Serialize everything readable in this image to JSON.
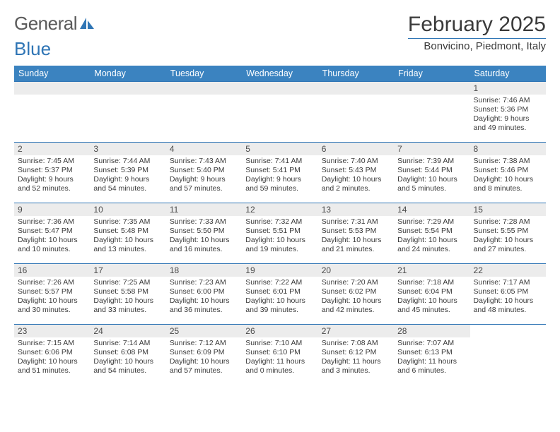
{
  "logo": {
    "part1": "General",
    "part2": "Blue"
  },
  "title": "February 2025",
  "location": "Bonvicino, Piedmont, Italy",
  "day_headers": [
    "Sunday",
    "Monday",
    "Tuesday",
    "Wednesday",
    "Thursday",
    "Friday",
    "Saturday"
  ],
  "colors": {
    "accent": "#3b83c0",
    "rule": "#2f75b5",
    "daynum_bg": "#ececec",
    "text": "#3a3a3a"
  },
  "weeks": [
    [
      null,
      null,
      null,
      null,
      null,
      null,
      {
        "n": "1",
        "sr": "7:46 AM",
        "ss": "5:36 PM",
        "dl": "9 hours and 49 minutes."
      }
    ],
    [
      {
        "n": "2",
        "sr": "7:45 AM",
        "ss": "5:37 PM",
        "dl": "9 hours and 52 minutes."
      },
      {
        "n": "3",
        "sr": "7:44 AM",
        "ss": "5:39 PM",
        "dl": "9 hours and 54 minutes."
      },
      {
        "n": "4",
        "sr": "7:43 AM",
        "ss": "5:40 PM",
        "dl": "9 hours and 57 minutes."
      },
      {
        "n": "5",
        "sr": "7:41 AM",
        "ss": "5:41 PM",
        "dl": "9 hours and 59 minutes."
      },
      {
        "n": "6",
        "sr": "7:40 AM",
        "ss": "5:43 PM",
        "dl": "10 hours and 2 minutes."
      },
      {
        "n": "7",
        "sr": "7:39 AM",
        "ss": "5:44 PM",
        "dl": "10 hours and 5 minutes."
      },
      {
        "n": "8",
        "sr": "7:38 AM",
        "ss": "5:46 PM",
        "dl": "10 hours and 8 minutes."
      }
    ],
    [
      {
        "n": "9",
        "sr": "7:36 AM",
        "ss": "5:47 PM",
        "dl": "10 hours and 10 minutes."
      },
      {
        "n": "10",
        "sr": "7:35 AM",
        "ss": "5:48 PM",
        "dl": "10 hours and 13 minutes."
      },
      {
        "n": "11",
        "sr": "7:33 AM",
        "ss": "5:50 PM",
        "dl": "10 hours and 16 minutes."
      },
      {
        "n": "12",
        "sr": "7:32 AM",
        "ss": "5:51 PM",
        "dl": "10 hours and 19 minutes."
      },
      {
        "n": "13",
        "sr": "7:31 AM",
        "ss": "5:53 PM",
        "dl": "10 hours and 21 minutes."
      },
      {
        "n": "14",
        "sr": "7:29 AM",
        "ss": "5:54 PM",
        "dl": "10 hours and 24 minutes."
      },
      {
        "n": "15",
        "sr": "7:28 AM",
        "ss": "5:55 PM",
        "dl": "10 hours and 27 minutes."
      }
    ],
    [
      {
        "n": "16",
        "sr": "7:26 AM",
        "ss": "5:57 PM",
        "dl": "10 hours and 30 minutes."
      },
      {
        "n": "17",
        "sr": "7:25 AM",
        "ss": "5:58 PM",
        "dl": "10 hours and 33 minutes."
      },
      {
        "n": "18",
        "sr": "7:23 AM",
        "ss": "6:00 PM",
        "dl": "10 hours and 36 minutes."
      },
      {
        "n": "19",
        "sr": "7:22 AM",
        "ss": "6:01 PM",
        "dl": "10 hours and 39 minutes."
      },
      {
        "n": "20",
        "sr": "7:20 AM",
        "ss": "6:02 PM",
        "dl": "10 hours and 42 minutes."
      },
      {
        "n": "21",
        "sr": "7:18 AM",
        "ss": "6:04 PM",
        "dl": "10 hours and 45 minutes."
      },
      {
        "n": "22",
        "sr": "7:17 AM",
        "ss": "6:05 PM",
        "dl": "10 hours and 48 minutes."
      }
    ],
    [
      {
        "n": "23",
        "sr": "7:15 AM",
        "ss": "6:06 PM",
        "dl": "10 hours and 51 minutes."
      },
      {
        "n": "24",
        "sr": "7:14 AM",
        "ss": "6:08 PM",
        "dl": "10 hours and 54 minutes."
      },
      {
        "n": "25",
        "sr": "7:12 AM",
        "ss": "6:09 PM",
        "dl": "10 hours and 57 minutes."
      },
      {
        "n": "26",
        "sr": "7:10 AM",
        "ss": "6:10 PM",
        "dl": "11 hours and 0 minutes."
      },
      {
        "n": "27",
        "sr": "7:08 AM",
        "ss": "6:12 PM",
        "dl": "11 hours and 3 minutes."
      },
      {
        "n": "28",
        "sr": "7:07 AM",
        "ss": "6:13 PM",
        "dl": "11 hours and 6 minutes."
      },
      null
    ]
  ],
  "labels": {
    "sunrise": "Sunrise:",
    "sunset": "Sunset:",
    "daylight": "Daylight:"
  }
}
